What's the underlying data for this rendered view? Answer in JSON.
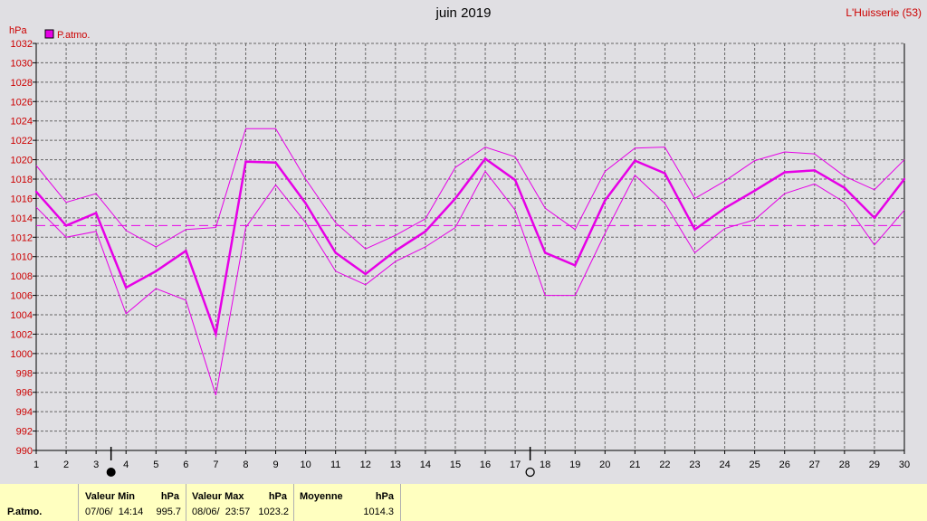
{
  "title": "juin 2019",
  "station": "L'Huisserie (53)",
  "chart_data": {
    "type": "line",
    "yunit": "hPa",
    "ylim": [
      990,
      1032
    ],
    "yticks": [
      990,
      992,
      994,
      996,
      998,
      1000,
      1002,
      1004,
      1006,
      1008,
      1010,
      1012,
      1014,
      1016,
      1018,
      1020,
      1022,
      1024,
      1026,
      1028,
      1030,
      1032
    ],
    "x": [
      1,
      2,
      3,
      4,
      5,
      6,
      7,
      8,
      9,
      10,
      11,
      12,
      13,
      14,
      15,
      16,
      17,
      18,
      19,
      20,
      21,
      22,
      23,
      24,
      25,
      26,
      27,
      28,
      29,
      30
    ],
    "grid": true,
    "legend": "top-left",
    "series": [
      {
        "name": "P.atmo.",
        "role": "mean",
        "color": "#e600e6",
        "values": [
          1016.7,
          1013.2,
          1014.5,
          1006.8,
          1008.5,
          1010.6,
          1002.0,
          1019.8,
          1019.7,
          1015.5,
          1010.4,
          1008.2,
          1010.6,
          1012.6,
          1016.0,
          1020.1,
          1017.9,
          1010.4,
          1009.1,
          1015.8,
          1019.9,
          1018.6,
          1012.8,
          1015.0,
          1016.8,
          1018.7,
          1018.9,
          1017.1,
          1014.0,
          1018.0
        ]
      },
      {
        "role": "max",
        "color": "#e600e6",
        "values": [
          1019.4,
          1015.6,
          1016.5,
          1012.7,
          1011.0,
          1012.8,
          1013.0,
          1023.2,
          1023.2,
          1018.0,
          1013.5,
          1010.8,
          1012.2,
          1013.9,
          1019.2,
          1021.3,
          1020.3,
          1015.0,
          1012.8,
          1018.8,
          1021.2,
          1021.3,
          1016.0,
          1017.8,
          1019.9,
          1020.8,
          1020.6,
          1018.3,
          1016.9,
          1020.0
        ]
      },
      {
        "role": "min",
        "color": "#e600e6",
        "values": [
          1015.1,
          1012.0,
          1012.6,
          1004.1,
          1006.7,
          1005.5,
          995.7,
          1013.0,
          1017.4,
          1013.5,
          1008.5,
          1007.1,
          1009.5,
          1011.0,
          1013.0,
          1018.8,
          1014.8,
          1006.0,
          1006.0,
          1012.4,
          1018.4,
          1015.5,
          1010.4,
          1012.9,
          1013.8,
          1016.5,
          1017.5,
          1015.6,
          1011.2,
          1014.8
        ]
      }
    ],
    "average_line": 1013.2,
    "moon_phases": [
      {
        "day": 3.5,
        "phase": "new"
      },
      {
        "day": 17.5,
        "phase": "full"
      }
    ]
  },
  "footer": {
    "row_label": "P.atmo.",
    "min_header": "Valeur Min",
    "min_unit": "hPa",
    "min_date": "07/06/  14:14",
    "min_value": "995.7",
    "max_header": "Valeur Max",
    "max_unit": "hPa",
    "max_date": "08/06/  23:57",
    "max_value": "1023.2",
    "avg_header": "Moyenne",
    "avg_unit": "hPa",
    "avg_value": "1014.3"
  }
}
